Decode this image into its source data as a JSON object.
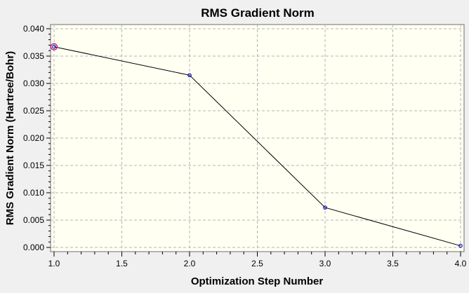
{
  "chart_data": {
    "type": "line",
    "title": "RMS Gradient Norm",
    "xlabel": "Optimization Step Number",
    "ylabel": "RMS Gradient Norm (Hartree/Bohr)",
    "xlim": [
      1.0,
      4.0
    ],
    "ylim": [
      0.0,
      0.04
    ],
    "xticks": [
      "1.0",
      "1.5",
      "2.0",
      "2.5",
      "3.0",
      "3.5",
      "4.0"
    ],
    "yticks": [
      "0.000",
      "0.005",
      "0.010",
      "0.015",
      "0.020",
      "0.025",
      "0.030",
      "0.035",
      "0.040"
    ],
    "grid": true,
    "highlighted_point_index": 0,
    "series": [
      {
        "x": [
          1,
          2,
          3,
          4
        ],
        "y": [
          0.0367,
          0.0315,
          0.0073,
          0.0003
        ]
      }
    ],
    "colors": {
      "plot_background": "#fffff2",
      "grid": "#b4b4b4",
      "line": "#000000",
      "marker": "#0000cc",
      "highlight": "#cc0066",
      "window_background": "#f0f0f0"
    }
  }
}
